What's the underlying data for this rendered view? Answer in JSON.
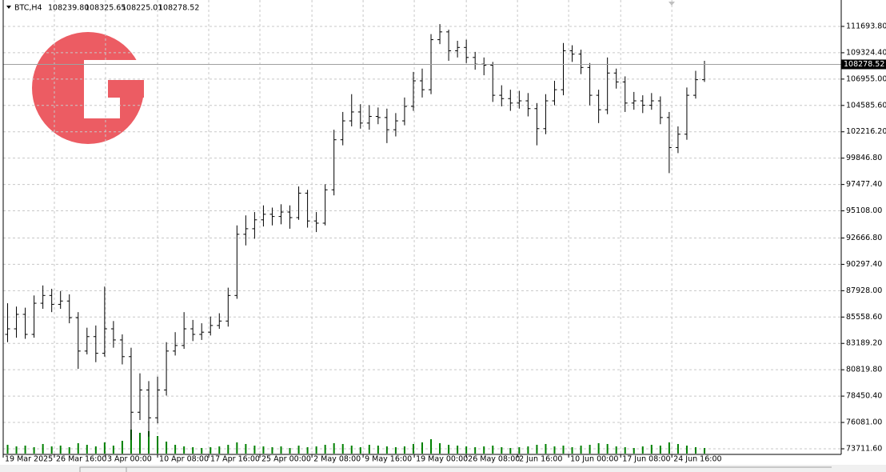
{
  "header": {
    "symbol": "BTC,H4",
    "open": "108239.80",
    "high": "108325.65",
    "low": "108225.01",
    "close": "108278.52"
  },
  "chart_data": {
    "type": "ohlc",
    "grid": true,
    "bar_color": "#000000",
    "volume_color": "#008000",
    "price_line_color": "#a0a0a0",
    "xlim": [
      0,
      95
    ],
    "xticks": [
      {
        "value": 0,
        "label": "19 Mar 2025"
      },
      {
        "value": 5.8,
        "label": "26 Mar 16:00"
      },
      {
        "value": 11.6,
        "label": "3 Apr 00:00"
      },
      {
        "value": 17.5,
        "label": "10 Apr 08:00"
      },
      {
        "value": 23.3,
        "label": "17 Apr 16:00"
      },
      {
        "value": 29.1,
        "label": "25 Apr 00:00"
      },
      {
        "value": 35,
        "label": "2 May 08:00"
      },
      {
        "value": 40.8,
        "label": "9 May 16:00"
      },
      {
        "value": 46.6,
        "label": "19 May 00:00"
      },
      {
        "value": 52.5,
        "label": "26 May 08:00"
      },
      {
        "value": 58.3,
        "label": "2 Jun 16:00"
      },
      {
        "value": 64.1,
        "label": "10 Jun 00:00"
      },
      {
        "value": 70,
        "label": "17 Jun 08:00"
      },
      {
        "value": 75.8,
        "label": "24 Jun 16:00"
      }
    ],
    "ylim": [
      73208,
      114067
    ],
    "yticks": [
      {
        "value": 73711.6,
        "label": "73711.60"
      },
      {
        "value": 76081.0,
        "label": "76081.00"
      },
      {
        "value": 78450.4,
        "label": "78450.40"
      },
      {
        "value": 80819.8,
        "label": "80819.80"
      },
      {
        "value": 83189.2,
        "label": "83189.20"
      },
      {
        "value": 85558.6,
        "label": "85558.60"
      },
      {
        "value": 87928.0,
        "label": "87928.00"
      },
      {
        "value": 90297.4,
        "label": "90297.40"
      },
      {
        "value": 92666.8,
        "label": "92666.80"
      },
      {
        "value": 95108.0,
        "label": "95108.00"
      },
      {
        "value": 97477.4,
        "label": "97477.40"
      },
      {
        "value": 99846.8,
        "label": "99846.80"
      },
      {
        "value": 102216.2,
        "label": "102216.20"
      },
      {
        "value": 104585.6,
        "label": "104585.60"
      },
      {
        "value": 106955.0,
        "label": "106955.00"
      },
      {
        "value": 109324.4,
        "label": "109324.40"
      },
      {
        "value": 111693.8,
        "label": "111693.80"
      }
    ],
    "open": [
      84000,
      84500,
      85800,
      84000,
      86800,
      87500,
      86700,
      87000,
      85500,
      82500,
      83800,
      82300,
      84500,
      83500,
      82000,
      77000,
      79000,
      76500,
      79000,
      82500,
      83000,
      84500,
      84000,
      84200,
      84800,
      85200,
      87500,
      93000,
      93500,
      94300,
      94800,
      94600,
      95000,
      94500,
      96700,
      94200,
      94000,
      97000,
      101500,
      103200,
      104000,
      103000,
      103600,
      103500,
      102400,
      103200,
      104500,
      106800,
      106000,
      110500,
      111200,
      109500,
      109800,
      108900,
      108300,
      108200,
      105500,
      105200,
      104800,
      105000,
      104300,
      102500,
      105000,
      106000,
      109500,
      109200,
      108000,
      105500,
      104200,
      107500,
      106700,
      104800,
      105000,
      104600,
      105000,
      103500,
      100800,
      102000,
      105500,
      106900
    ],
    "high": [
      86800,
      86500,
      86400,
      87500,
      88400,
      88100,
      87900,
      87600,
      86000,
      84600,
      84800,
      88300,
      85200,
      84000,
      82800,
      80500,
      79800,
      80200,
      83300,
      84200,
      86000,
      85300,
      85000,
      85600,
      85900,
      88200,
      93800,
      94700,
      95000,
      95600,
      95400,
      95700,
      95600,
      97300,
      97000,
      95000,
      97500,
      102400,
      104000,
      105600,
      104700,
      104600,
      104400,
      104300,
      103900,
      105300,
      107600,
      107900,
      111000,
      111900,
      111400,
      110400,
      110500,
      109400,
      108900,
      108500,
      106400,
      106000,
      105900,
      105700,
      104800,
      105600,
      106800,
      110200,
      110000,
      109600,
      108400,
      106000,
      108900,
      107900,
      107200,
      105800,
      105500,
      105700,
      105400,
      104000,
      102700,
      106200,
      107700,
      108600
    ],
    "low": [
      83300,
      83700,
      83600,
      83700,
      86300,
      86000,
      86300,
      85000,
      80900,
      82200,
      81500,
      82000,
      82800,
      81300,
      74500,
      76300,
      74800,
      76000,
      78500,
      82100,
      82700,
      83400,
      83500,
      83900,
      84500,
      84700,
      87200,
      92000,
      92600,
      93700,
      93800,
      93900,
      93500,
      94300,
      93600,
      93200,
      93800,
      96500,
      101000,
      102700,
      102500,
      102400,
      102900,
      101200,
      101800,
      102800,
      104100,
      105300,
      105600,
      110100,
      108600,
      108900,
      108400,
      107800,
      107300,
      104900,
      104500,
      104100,
      104300,
      103600,
      101000,
      102000,
      104600,
      105500,
      108500,
      107400,
      104600,
      103000,
      103800,
      106100,
      104000,
      104200,
      103900,
      104200,
      102900,
      98500,
      100300,
      101500,
      105200,
      106700
    ],
    "close": [
      84500,
      85800,
      84000,
      86800,
      87500,
      86700,
      87000,
      85500,
      82500,
      83800,
      82300,
      84500,
      83500,
      82000,
      77000,
      79000,
      76500,
      79000,
      82500,
      83000,
      84500,
      84000,
      84200,
      84800,
      85200,
      87500,
      93000,
      93500,
      94300,
      94800,
      94600,
      95000,
      94500,
      96700,
      94200,
      94000,
      97000,
      101500,
      103200,
      104000,
      103000,
      103600,
      103500,
      102400,
      103200,
      104500,
      106800,
      106000,
      110500,
      111200,
      109500,
      109800,
      108900,
      108300,
      108200,
      105500,
      105200,
      104800,
      105000,
      104300,
      102500,
      105000,
      106000,
      109500,
      109200,
      108000,
      105500,
      104200,
      107500,
      106700,
      104800,
      105000,
      104600,
      105000,
      103500,
      100800,
      102000,
      105500,
      106900,
      108278.52
    ],
    "volume": [
      1100,
      900,
      1000,
      800,
      1200,
      900,
      1000,
      800,
      1300,
      1100,
      900,
      1400,
      1000,
      1600,
      3000,
      2600,
      2800,
      2200,
      1500,
      1100,
      900,
      800,
      700,
      800,
      900,
      1100,
      1400,
      1200,
      1000,
      900,
      800,
      900,
      700,
      1000,
      800,
      900,
      1100,
      1300,
      1200,
      1000,
      800,
      1100,
      1000,
      900,
      800,
      900,
      1200,
      1400,
      1800,
      1300,
      1100,
      1000,
      900,
      800,
      900,
      1000,
      800,
      700,
      800,
      900,
      1100,
      1200,
      900,
      1000,
      800,
      1000,
      1100,
      1300,
      1200,
      900,
      800,
      700,
      900,
      1100,
      1000,
      1400,
      1200,
      1000,
      800,
      700
    ]
  }
}
